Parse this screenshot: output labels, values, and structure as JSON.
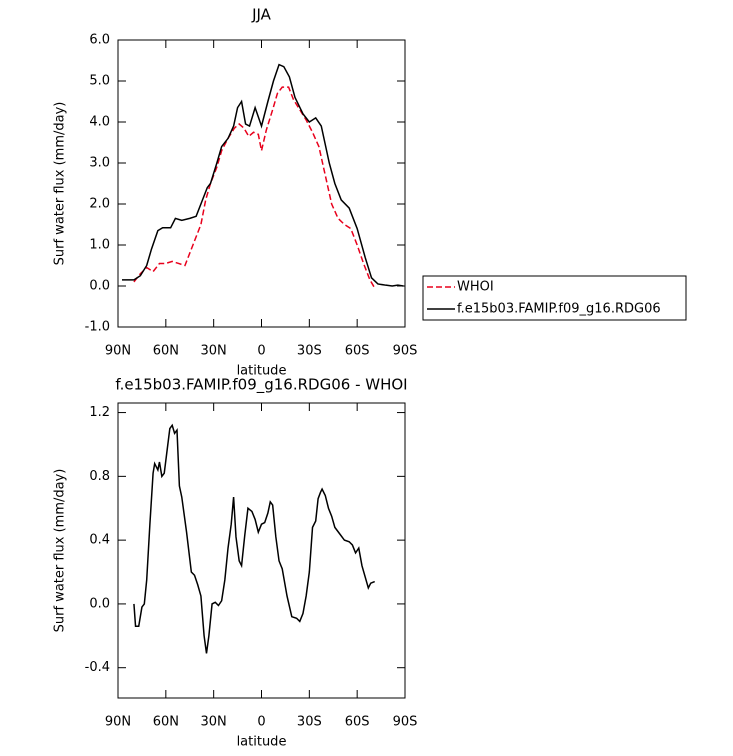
{
  "chart_data": [
    {
      "type": "line",
      "title": "JJA",
      "xlabel": "latitude",
      "ylabel": "Surf water flux (mm/day)",
      "xlim": [
        90,
        -90
      ],
      "xticks": [
        {
          "value": 90,
          "label": "90N"
        },
        {
          "value": 60,
          "label": "60N"
        },
        {
          "value": 30,
          "label": "30N"
        },
        0,
        {
          "value": -30,
          "label": "30S"
        },
        {
          "value": -60,
          "label": "60S"
        },
        {
          "value": -90,
          "label": "90S"
        }
      ],
      "ylim": [
        -1,
        6
      ],
      "yticks": [
        {
          "value": 6,
          "label": "6.0"
        },
        {
          "value": 5,
          "label": "5.0"
        },
        {
          "value": 4,
          "label": "4.0"
        },
        {
          "value": 3,
          "label": "3.0"
        },
        {
          "value": 2,
          "label": "2.0"
        },
        {
          "value": 1,
          "label": "1.0"
        },
        {
          "value": 0,
          "label": "0.0"
        },
        {
          "value": -1,
          "label": "-1.0"
        }
      ],
      "legend": "right",
      "series": [
        {
          "name": "WHOI",
          "color": "#e8001c",
          "line_style": "dashed",
          "x": [
            80,
            76,
            72,
            68,
            64,
            60,
            56,
            52,
            48,
            45,
            42,
            38,
            35,
            32,
            28,
            25,
            21,
            17,
            14,
            11,
            8,
            5,
            2,
            0,
            -3,
            -7,
            -10,
            -13,
            -17,
            -20,
            -24,
            -28,
            -32,
            -36,
            -40,
            -44,
            -48,
            -52,
            -56,
            -60,
            -64,
            -68,
            -71
          ],
          "values": [
            0.1,
            0.3,
            0.45,
            0.35,
            0.55,
            0.55,
            0.6,
            0.55,
            0.5,
            0.8,
            1.1,
            1.5,
            2.1,
            2.5,
            2.9,
            3.3,
            3.6,
            3.85,
            3.95,
            3.85,
            3.65,
            3.75,
            3.7,
            3.3,
            3.8,
            4.3,
            4.7,
            4.85,
            4.85,
            4.55,
            4.3,
            4.05,
            3.75,
            3.4,
            2.7,
            2.0,
            1.65,
            1.5,
            1.4,
            1.0,
            0.55,
            0.15,
            -0.05
          ]
        },
        {
          "name": "f.e15b03.FAMIP.f09_g16.RDG06",
          "color": "#000000",
          "line_style": "solid",
          "x": [
            87.5,
            80,
            76,
            72,
            69,
            65,
            62,
            57,
            54,
            50,
            45,
            41,
            37,
            34,
            32,
            28,
            25,
            21,
            17.5,
            15,
            12.5,
            10,
            7.5,
            4,
            0,
            -4,
            -7.5,
            -11,
            -14,
            -17.5,
            -21,
            -26,
            -30,
            -34,
            -37.5,
            -42.5,
            -46,
            -50,
            -55,
            -60,
            -65,
            -69,
            -73,
            -78,
            -82,
            -85.5,
            -89
          ],
          "values": [
            0.15,
            0.15,
            0.25,
            0.5,
            0.9,
            1.35,
            1.42,
            1.42,
            1.65,
            1.6,
            1.65,
            1.7,
            2.1,
            2.4,
            2.5,
            3.0,
            3.4,
            3.6,
            3.9,
            4.35,
            4.5,
            3.95,
            3.9,
            4.35,
            3.9,
            4.5,
            5.0,
            5.4,
            5.35,
            5.1,
            4.6,
            4.2,
            4.0,
            4.1,
            3.9,
            3.0,
            2.5,
            2.1,
            1.9,
            1.4,
            0.7,
            0.2,
            0.05,
            0.02,
            0.0,
            0.02,
            0.0
          ]
        }
      ]
    },
    {
      "type": "line",
      "title": "f.e15b03.FAMIP.f09_g16.RDG06 - WHOI",
      "xlabel": "latitude",
      "ylabel": "Surf water flux (mm/day)",
      "xlim": [
        90,
        -90
      ],
      "xticks": [
        {
          "value": 90,
          "label": "90N"
        },
        {
          "value": 60,
          "label": "60N"
        },
        {
          "value": 30,
          "label": "30N"
        },
        0,
        {
          "value": -30,
          "label": "30S"
        },
        {
          "value": -60,
          "label": "60S"
        },
        {
          "value": -90,
          "label": "90S"
        }
      ],
      "ylim": [
        -0.59,
        1.26
      ],
      "yticks": [
        1.2,
        0.8,
        0.4,
        {
          "value": 0,
          "label": "0.0"
        },
        -0.4
      ],
      "color": "#000000",
      "x": [
        80,
        79,
        77,
        75,
        73.5,
        72,
        70,
        68,
        67,
        65,
        64,
        62.5,
        61,
        59,
        57.5,
        56,
        54.5,
        53,
        51.5,
        50,
        47,
        44,
        42,
        40,
        38,
        36,
        34.5,
        33,
        31,
        29,
        27,
        25,
        23,
        21,
        19,
        17.5,
        16,
        14,
        12.5,
        10.5,
        8.5,
        6,
        4,
        2,
        0,
        -2,
        -4,
        -5.5,
        -7,
        -9,
        -11,
        -13,
        -16,
        -19,
        -22,
        -24,
        -26,
        -28,
        -30,
        -32,
        -34,
        -35.5,
        -37,
        -38,
        -40,
        -42,
        -44,
        -46,
        -49,
        -52,
        -55,
        -57,
        -59,
        -61,
        -63,
        -65,
        -67,
        -68.5,
        -71
      ],
      "values": [
        0.0,
        -0.14,
        -0.14,
        -0.02,
        0.0,
        0.15,
        0.5,
        0.82,
        0.88,
        0.84,
        0.89,
        0.8,
        0.82,
        0.98,
        1.1,
        1.12,
        1.07,
        1.09,
        0.74,
        0.67,
        0.45,
        0.2,
        0.18,
        0.12,
        0.05,
        -0.2,
        -0.31,
        -0.2,
        0.0,
        0.01,
        -0.01,
        0.02,
        0.15,
        0.35,
        0.5,
        0.67,
        0.42,
        0.27,
        0.24,
        0.43,
        0.6,
        0.58,
        0.53,
        0.45,
        0.5,
        0.51,
        0.57,
        0.64,
        0.62,
        0.42,
        0.27,
        0.22,
        0.05,
        -0.08,
        -0.09,
        -0.11,
        -0.06,
        0.05,
        0.2,
        0.48,
        0.52,
        0.66,
        0.7,
        0.72,
        0.68,
        0.6,
        0.55,
        0.48,
        0.44,
        0.4,
        0.39,
        0.37,
        0.32,
        0.35,
        0.24,
        0.17,
        0.1,
        0.13,
        0.14
      ]
    }
  ]
}
